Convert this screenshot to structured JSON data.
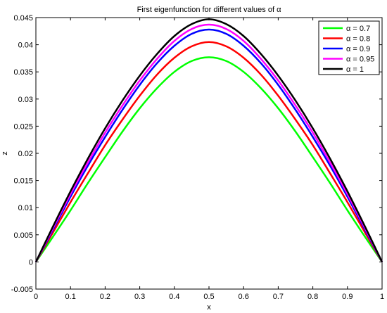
{
  "chart_data": {
    "type": "line",
    "title": "First eigenfunction for different values of α",
    "xlabel": "x",
    "ylabel": "z",
    "xlim": [
      0,
      1
    ],
    "ylim": [
      -0.005,
      0.045
    ],
    "x_ticks": [
      0,
      0.1,
      0.2,
      0.3,
      0.4,
      0.5,
      0.6,
      0.7,
      0.8,
      0.9,
      1
    ],
    "x_tick_labels": [
      "0",
      "0.1",
      "0.2",
      "0.3",
      "0.4",
      "0.5",
      "0.6",
      "0.7",
      "0.8",
      "0.9",
      "1"
    ],
    "y_ticks": [
      -0.005,
      0,
      0.005,
      0.01,
      0.015,
      0.02,
      0.025,
      0.03,
      0.035,
      0.04,
      0.045
    ],
    "y_tick_labels": [
      "-0.005",
      "0",
      "0.005",
      "0.01",
      "0.015",
      "0.02",
      "0.025",
      "0.03",
      "0.035",
      "0.04",
      "0.045"
    ],
    "grid": false,
    "legend_position": "top-right",
    "x": [
      0,
      0.05,
      0.1,
      0.15,
      0.2,
      0.25,
      0.3,
      0.35,
      0.4,
      0.45,
      0.5,
      0.55,
      0.6,
      0.65,
      0.7,
      0.75,
      0.8,
      0.85,
      0.9,
      0.95,
      1
    ],
    "series": [
      {
        "name": "α = 0.7",
        "color": "#00ff00",
        "values": [
          0,
          0.0047,
          0.0095,
          0.0145,
          0.0193,
          0.024,
          0.0283,
          0.032,
          0.035,
          0.037,
          0.0377,
          0.037,
          0.035,
          0.032,
          0.0283,
          0.024,
          0.0193,
          0.0145,
          0.0095,
          0.0047,
          0
        ]
      },
      {
        "name": "α = 0.8",
        "color": "#ff0000",
        "values": [
          0,
          0.0055,
          0.011,
          0.0163,
          0.0215,
          0.0262,
          0.0306,
          0.0345,
          0.0376,
          0.0397,
          0.0405,
          0.0397,
          0.0376,
          0.0345,
          0.0306,
          0.0262,
          0.0215,
          0.0163,
          0.011,
          0.0055,
          0
        ]
      },
      {
        "name": "α = 0.9",
        "color": "#0000ff",
        "values": [
          0,
          0.006,
          0.012,
          0.0177,
          0.023,
          0.028,
          0.0326,
          0.0366,
          0.0398,
          0.042,
          0.0428,
          0.042,
          0.0398,
          0.0366,
          0.0326,
          0.028,
          0.023,
          0.0177,
          0.012,
          0.006,
          0
        ]
      },
      {
        "name": "α = 0.95",
        "color": "#ff00ff",
        "values": [
          0,
          0.0063,
          0.0125,
          0.0183,
          0.0238,
          0.0288,
          0.0334,
          0.0374,
          0.0407,
          0.0429,
          0.0437,
          0.0429,
          0.0407,
          0.0374,
          0.0334,
          0.0288,
          0.0238,
          0.0183,
          0.0125,
          0.0063,
          0
        ]
      },
      {
        "name": "α = 1",
        "color": "#000000",
        "values": [
          0,
          0.0066,
          0.013,
          0.019,
          0.0246,
          0.0297,
          0.0343,
          0.0383,
          0.0416,
          0.0438,
          0.0447,
          0.0438,
          0.0416,
          0.0383,
          0.0343,
          0.0297,
          0.0246,
          0.019,
          0.013,
          0.0066,
          0
        ]
      }
    ]
  }
}
